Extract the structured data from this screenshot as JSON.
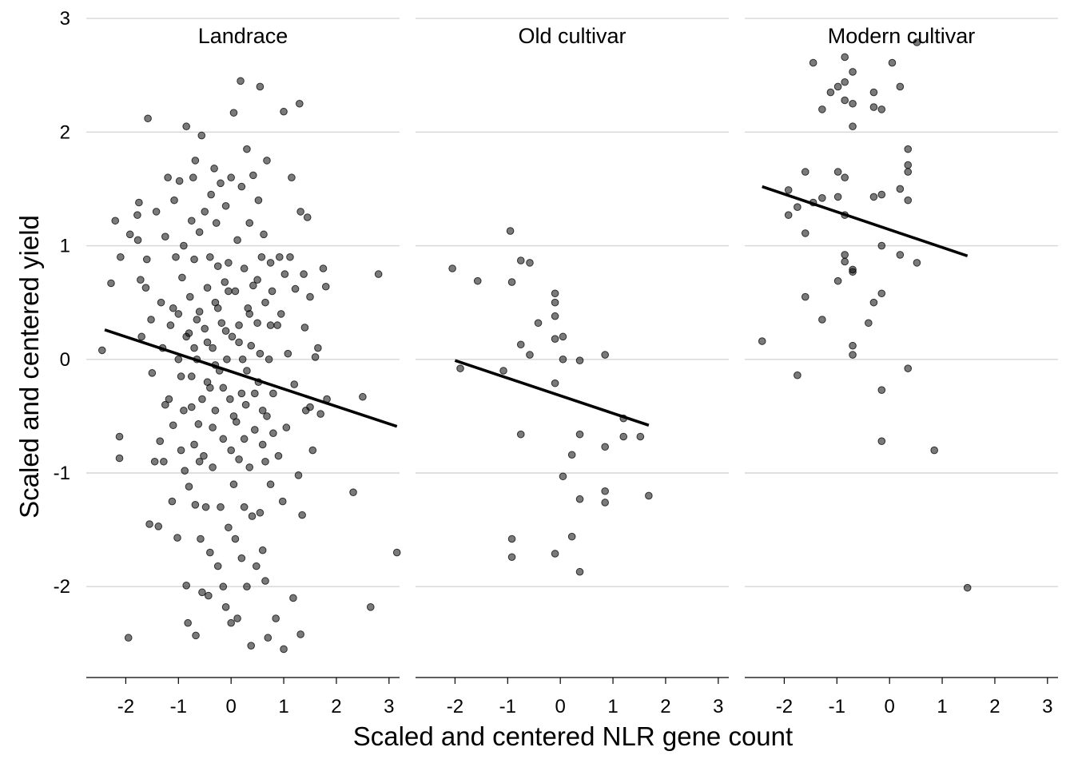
{
  "chart_data": {
    "type": "scatter",
    "xlabel": "Scaled and centered NLR gene count",
    "ylabel": "Scaled and centered yield",
    "xlim": [
      -2.75,
      3.2
    ],
    "ylim": [
      -2.8,
      3.05
    ],
    "x_ticks": [
      -2,
      -1,
      0,
      1,
      2,
      3
    ],
    "y_ticks": [
      -2,
      -1,
      0,
      1,
      2,
      3
    ],
    "grid": "horizontal major lines",
    "point_color": "#000000",
    "point_alpha": 0.55,
    "line_color": "#000000",
    "panels": [
      {
        "title": "Landrace",
        "trend": {
          "x0": -2.4,
          "y0": 0.26,
          "x1": 3.15,
          "y1": -0.59
        },
        "points": [
          [
            -2.45,
            0.08
          ],
          [
            -2.28,
            0.67
          ],
          [
            -2.2,
            1.22
          ],
          [
            -2.1,
            0.9
          ],
          [
            -2.12,
            -0.68
          ],
          [
            -2.12,
            -0.87
          ],
          [
            -1.95,
            -2.45
          ],
          [
            -1.92,
            1.1
          ],
          [
            -1.78,
            1.27
          ],
          [
            -1.77,
            1.05
          ],
          [
            -1.75,
            1.38
          ],
          [
            -1.72,
            0.7
          ],
          [
            -1.7,
            0.2
          ],
          [
            -1.62,
            0.63
          ],
          [
            -1.6,
            0.88
          ],
          [
            -1.58,
            2.12
          ],
          [
            -1.55,
            -1.45
          ],
          [
            -1.52,
            0.35
          ],
          [
            -1.5,
            -0.12
          ],
          [
            -1.45,
            -0.9
          ],
          [
            -1.42,
            1.3
          ],
          [
            -1.38,
            -1.47
          ],
          [
            -1.35,
            -0.72
          ],
          [
            -1.33,
            0.5
          ],
          [
            -1.3,
            0.1
          ],
          [
            -1.28,
            -0.9
          ],
          [
            -1.25,
            1.08
          ],
          [
            -1.2,
            1.6
          ],
          [
            -1.18,
            -0.35
          ],
          [
            -1.15,
            0.3
          ],
          [
            -1.12,
            -1.25
          ],
          [
            -1.1,
            -0.58
          ],
          [
            -1.08,
            1.4
          ],
          [
            -1.05,
            0.9
          ],
          [
            -1.02,
            -1.57
          ],
          [
            -1.0,
            0.4
          ],
          [
            -0.98,
            1.57
          ],
          [
            -0.95,
            -0.15
          ],
          [
            -0.93,
            0.72
          ],
          [
            -0.9,
            1.0
          ],
          [
            -0.88,
            -0.98
          ],
          [
            -0.85,
            2.05
          ],
          [
            -0.85,
            -1.99
          ],
          [
            -0.82,
            -2.32
          ],
          [
            -0.8,
            0.23
          ],
          [
            -0.8,
            -1.12
          ],
          [
            -0.78,
            0.55
          ],
          [
            -0.75,
            1.22
          ],
          [
            -0.75,
            -0.42
          ],
          [
            -0.72,
            1.6
          ],
          [
            -0.7,
            -0.75
          ],
          [
            -0.7,
            0.88
          ],
          [
            -0.68,
            1.75
          ],
          [
            -0.68,
            -1.28
          ],
          [
            -0.67,
            -2.43
          ],
          [
            -0.65,
            0.0
          ],
          [
            -0.62,
            -0.57
          ],
          [
            -0.6,
            0.42
          ],
          [
            -0.6,
            1.12
          ],
          [
            -0.58,
            -1.58
          ],
          [
            -0.56,
            1.97
          ],
          [
            -0.55,
            -2.05
          ],
          [
            -0.52,
            -0.85
          ],
          [
            -0.5,
            0.27
          ],
          [
            -0.5,
            1.3
          ],
          [
            -0.48,
            -1.3
          ],
          [
            -0.45,
            0.63
          ],
          [
            -0.45,
            -0.2
          ],
          [
            -0.43,
            -2.08
          ],
          [
            -0.4,
            0.9
          ],
          [
            -0.4,
            -1.7
          ],
          [
            -0.38,
            1.45
          ],
          [
            -0.35,
            0.1
          ],
          [
            -0.35,
            -0.95
          ],
          [
            -0.32,
            1.68
          ],
          [
            -0.3,
            -0.45
          ],
          [
            -0.3,
            0.5
          ],
          [
            -0.28,
            1.2
          ],
          [
            -0.25,
            -1.82
          ],
          [
            -0.25,
            0.82
          ],
          [
            -0.22,
            -0.1
          ],
          [
            -0.2,
            1.55
          ],
          [
            -0.2,
            -1.3
          ],
          [
            -0.18,
            0.32
          ],
          [
            -0.15,
            -2.0
          ],
          [
            -0.15,
            -0.7
          ],
          [
            -0.12,
            0.68
          ],
          [
            -0.1,
            1.35
          ],
          [
            -0.1,
            -2.18
          ],
          [
            -0.08,
            0.0
          ],
          [
            -0.05,
            -1.48
          ],
          [
            -0.05,
            0.85
          ],
          [
            -0.02,
            -0.35
          ],
          [
            0.0,
            1.6
          ],
          [
            0.0,
            -2.32
          ],
          [
            0.02,
            0.2
          ],
          [
            0.05,
            2.17
          ],
          [
            0.05,
            -1.1
          ],
          [
            0.08,
            0.6
          ],
          [
            0.08,
            -1.58
          ],
          [
            0.1,
            -0.55
          ],
          [
            0.12,
            1.05
          ],
          [
            0.12,
            -2.28
          ],
          [
            0.15,
            0.3
          ],
          [
            0.15,
            -0.88
          ],
          [
            0.18,
            2.45
          ],
          [
            0.2,
            -1.75
          ],
          [
            0.2,
            1.52
          ],
          [
            0.22,
            0.0
          ],
          [
            0.25,
            -1.3
          ],
          [
            0.25,
            0.8
          ],
          [
            0.28,
            -0.4
          ],
          [
            0.3,
            1.85
          ],
          [
            0.3,
            -2.0
          ],
          [
            0.32,
            0.45
          ],
          [
            0.35,
            -0.95
          ],
          [
            0.35,
            1.2
          ],
          [
            0.38,
            -2.52
          ],
          [
            0.38,
            0.12
          ],
          [
            0.4,
            -1.38
          ],
          [
            0.42,
            0.65
          ],
          [
            0.42,
            1.62
          ],
          [
            0.45,
            -0.62
          ],
          [
            0.48,
            -1.82
          ],
          [
            0.5,
            0.32
          ],
          [
            0.52,
            1.4
          ],
          [
            0.52,
            -0.2
          ],
          [
            0.55,
            2.4
          ],
          [
            0.55,
            -1.35
          ],
          [
            0.58,
            0.9
          ],
          [
            0.6,
            -0.75
          ],
          [
            0.6,
            -1.68
          ],
          [
            0.62,
            1.1
          ],
          [
            0.65,
            0.5
          ],
          [
            0.65,
            -1.95
          ],
          [
            0.68,
            1.75
          ],
          [
            0.68,
            -0.5
          ],
          [
            0.7,
            -2.45
          ],
          [
            0.72,
            0.0
          ],
          [
            0.75,
            0.85
          ],
          [
            0.75,
            -1.1
          ],
          [
            0.78,
            0.6
          ],
          [
            0.8,
            -0.3
          ],
          [
            0.85,
            -2.28
          ],
          [
            0.88,
            0.3
          ],
          [
            0.9,
            -0.85
          ],
          [
            0.92,
            0.9
          ],
          [
            0.95,
            0.4
          ],
          [
            0.98,
            -1.25
          ],
          [
            1.0,
            2.18
          ],
          [
            1.0,
            -2.55
          ],
          [
            1.02,
            0.75
          ],
          [
            1.05,
            -0.6
          ],
          [
            1.08,
            0.05
          ],
          [
            1.12,
            0.9
          ],
          [
            1.15,
            1.6
          ],
          [
            1.18,
            -2.1
          ],
          [
            1.2,
            -0.22
          ],
          [
            1.22,
            0.62
          ],
          [
            1.28,
            -1.02
          ],
          [
            1.3,
            2.25
          ],
          [
            1.32,
            -2.42
          ],
          [
            1.32,
            1.3
          ],
          [
            1.35,
            -1.37
          ],
          [
            1.38,
            0.75
          ],
          [
            1.4,
            0.28
          ],
          [
            1.42,
            -0.45
          ],
          [
            1.45,
            1.25
          ],
          [
            1.5,
            -0.42
          ],
          [
            1.5,
            0.55
          ],
          [
            1.55,
            -0.8
          ],
          [
            1.6,
            0.02
          ],
          [
            1.65,
            0.1
          ],
          [
            1.7,
            -0.48
          ],
          [
            1.75,
            0.8
          ],
          [
            1.8,
            0.64
          ],
          [
            1.82,
            -0.35
          ],
          [
            2.32,
            -1.17
          ],
          [
            2.5,
            -0.33
          ],
          [
            2.65,
            -2.18
          ],
          [
            2.8,
            0.75
          ],
          [
            3.15,
            -1.7
          ],
          [
            -1.25,
            -0.4
          ],
          [
            -1.1,
            0.45
          ],
          [
            -0.95,
            -0.8
          ],
          [
            -0.85,
            0.2
          ],
          [
            -0.75,
            -0.15
          ],
          [
            -0.65,
            0.35
          ],
          [
            -0.55,
            -0.35
          ],
          [
            -0.45,
            0.15
          ],
          [
            -0.35,
            -0.6
          ],
          [
            -0.25,
            0.45
          ],
          [
            -0.15,
            -0.25
          ],
          [
            -0.05,
            0.6
          ],
          [
            0.05,
            -0.5
          ],
          [
            0.15,
            0.15
          ],
          [
            0.25,
            -0.7
          ],
          [
            0.35,
            0.4
          ],
          [
            0.45,
            -0.3
          ],
          [
            0.55,
            0.05
          ],
          [
            0.65,
            -0.9
          ],
          [
            0.75,
            0.3
          ],
          [
            -0.9,
            -0.45
          ],
          [
            -0.6,
            -0.9
          ],
          [
            -0.3,
            -0.05
          ],
          [
            0.0,
            -0.8
          ],
          [
            0.3,
            -0.1
          ],
          [
            0.6,
            -0.45
          ],
          [
            -1.0,
            0.0
          ],
          [
            -0.7,
            0.1
          ],
          [
            -0.4,
            -0.25
          ],
          [
            -0.1,
            0.25
          ],
          [
            0.2,
            -0.3
          ],
          [
            0.5,
            0.7
          ],
          [
            0.8,
            -0.65
          ]
        ]
      },
      {
        "title": "Old cultivar",
        "trend": {
          "x0": -2.0,
          "y0": -0.01,
          "x1": 1.68,
          "y1": -0.58
        },
        "points": [
          [
            -2.05,
            0.8
          ],
          [
            -1.9,
            -0.08
          ],
          [
            -1.57,
            0.69
          ],
          [
            -1.08,
            -0.1
          ],
          [
            -0.95,
            1.13
          ],
          [
            -0.92,
            0.68
          ],
          [
            -0.92,
            -1.58
          ],
          [
            -0.92,
            -1.74
          ],
          [
            -0.75,
            0.87
          ],
          [
            -0.75,
            0.13
          ],
          [
            -0.75,
            -0.66
          ],
          [
            -0.58,
            0.85
          ],
          [
            -0.58,
            0.04
          ],
          [
            -0.42,
            0.32
          ],
          [
            -0.1,
            0.58
          ],
          [
            -0.1,
            0.5
          ],
          [
            -0.1,
            0.38
          ],
          [
            -0.1,
            0.18
          ],
          [
            -0.1,
            -0.21
          ],
          [
            -0.1,
            -1.71
          ],
          [
            0.05,
            0.2
          ],
          [
            0.05,
            0.0
          ],
          [
            0.05,
            -1.03
          ],
          [
            0.22,
            -0.84
          ],
          [
            0.22,
            -1.56
          ],
          [
            0.37,
            -0.01
          ],
          [
            0.37,
            -0.66
          ],
          [
            0.37,
            -1.23
          ],
          [
            0.37,
            -1.87
          ],
          [
            0.85,
            0.04
          ],
          [
            0.85,
            -0.77
          ],
          [
            0.85,
            -1.16
          ],
          [
            0.85,
            -1.26
          ],
          [
            1.2,
            -0.52
          ],
          [
            1.2,
            -0.68
          ],
          [
            1.52,
            -0.68
          ],
          [
            1.68,
            -1.2
          ]
        ]
      },
      {
        "title": "Modern cultivar",
        "trend": {
          "x0": -2.42,
          "y0": 1.52,
          "x1": 1.48,
          "y1": 0.91
        },
        "points": [
          [
            -2.42,
            0.16
          ],
          [
            -1.92,
            1.49
          ],
          [
            -1.92,
            1.27
          ],
          [
            -1.75,
            -0.14
          ],
          [
            -1.75,
            1.34
          ],
          [
            -1.6,
            0.55
          ],
          [
            -1.6,
            1.11
          ],
          [
            -1.6,
            1.65
          ],
          [
            -1.45,
            2.61
          ],
          [
            -1.45,
            1.38
          ],
          [
            -1.28,
            2.2
          ],
          [
            -1.28,
            1.42
          ],
          [
            -1.28,
            0.35
          ],
          [
            -1.12,
            2.35
          ],
          [
            -0.98,
            2.4
          ],
          [
            -0.98,
            1.65
          ],
          [
            -0.98,
            0.69
          ],
          [
            -0.98,
            1.43
          ],
          [
            -0.85,
            2.66
          ],
          [
            -0.85,
            2.44
          ],
          [
            -0.85,
            2.28
          ],
          [
            -0.85,
            1.6
          ],
          [
            -0.85,
            1.27
          ],
          [
            -0.85,
            0.92
          ],
          [
            -0.85,
            0.86
          ],
          [
            -0.7,
            2.53
          ],
          [
            -0.7,
            2.05
          ],
          [
            -0.7,
            2.25
          ],
          [
            -0.7,
            0.79
          ],
          [
            -0.7,
            0.77
          ],
          [
            -0.7,
            0.12
          ],
          [
            -0.7,
            0.04
          ],
          [
            -0.4,
            0.32
          ],
          [
            -0.3,
            2.35
          ],
          [
            -0.3,
            2.22
          ],
          [
            -0.3,
            1.43
          ],
          [
            -0.3,
            0.5
          ],
          [
            -0.15,
            2.2
          ],
          [
            -0.15,
            1.45
          ],
          [
            -0.15,
            1.0
          ],
          [
            -0.15,
            0.58
          ],
          [
            -0.15,
            -0.27
          ],
          [
            -0.15,
            -0.72
          ],
          [
            0.05,
            2.61
          ],
          [
            0.2,
            2.4
          ],
          [
            0.2,
            1.5
          ],
          [
            0.2,
            0.92
          ],
          [
            0.35,
            1.85
          ],
          [
            0.35,
            1.71
          ],
          [
            0.35,
            1.65
          ],
          [
            0.35,
            1.4
          ],
          [
            0.35,
            -0.08
          ],
          [
            0.52,
            2.79
          ],
          [
            0.52,
            0.85
          ],
          [
            0.85,
            -0.8
          ],
          [
            1.48,
            -2.01
          ]
        ]
      }
    ]
  }
}
